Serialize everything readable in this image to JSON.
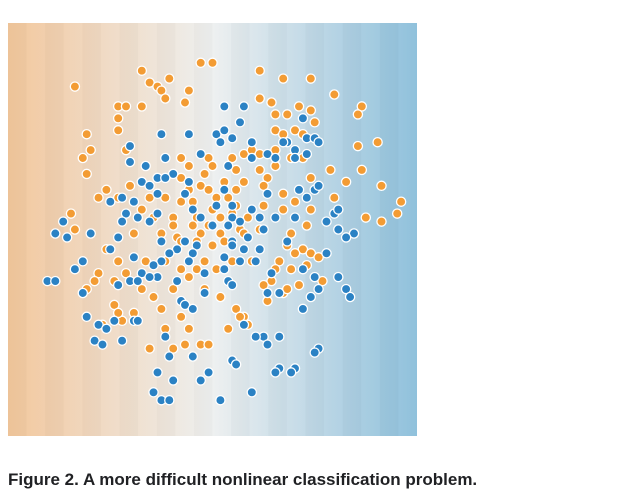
{
  "caption": "Figure 2. A more difficult nonlinear classification problem.",
  "colors": {
    "orange_point": "#f39c34",
    "blue_point": "#2b82c4",
    "background_left": "#f2c79c",
    "background_mid": "#eef0f0",
    "background_right": "#8ec0dc",
    "point_stroke": "#ffffff"
  },
  "chart_data": {
    "type": "scatter",
    "title": "",
    "xlabel": "",
    "ylabel": "",
    "xlim": [
      0,
      100
    ],
    "ylim": [
      0,
      100
    ],
    "grid": false,
    "background": "horizontal gradient orange to blue",
    "series": [
      {
        "color": "#f39c34",
        "points": [
          [
            47,
            92
          ],
          [
            50,
            92
          ],
          [
            32,
            90
          ],
          [
            62,
            90
          ],
          [
            39,
            88
          ],
          [
            68,
            88
          ],
          [
            75,
            88
          ],
          [
            34,
            87
          ],
          [
            36,
            86
          ],
          [
            15,
            86
          ],
          [
            37,
            85
          ],
          [
            44,
            85
          ],
          [
            81,
            84
          ],
          [
            62,
            83
          ],
          [
            38,
            83
          ],
          [
            65,
            82
          ],
          [
            26,
            81
          ],
          [
            28,
            81
          ],
          [
            32,
            81
          ],
          [
            43,
            82
          ],
          [
            88,
            81
          ],
          [
            72,
            81
          ],
          [
            75,
            80
          ],
          [
            69,
            79
          ],
          [
            66,
            79
          ],
          [
            87,
            79
          ],
          [
            26,
            78
          ],
          [
            76,
            77
          ],
          [
            66,
            75
          ],
          [
            18,
            74
          ],
          [
            71,
            75
          ],
          [
            26,
            75
          ],
          [
            68,
            74
          ],
          [
            73,
            74
          ],
          [
            19,
            70
          ],
          [
            87,
            71
          ],
          [
            92,
            72
          ],
          [
            28,
            70
          ],
          [
            58,
            69
          ],
          [
            60,
            70
          ],
          [
            62,
            69
          ],
          [
            66,
            70
          ],
          [
            42,
            68
          ],
          [
            49,
            68
          ],
          [
            55,
            68
          ],
          [
            70,
            68
          ],
          [
            73,
            68
          ],
          [
            17,
            68
          ],
          [
            66,
            66
          ],
          [
            50,
            66
          ],
          [
            62,
            65
          ],
          [
            80,
            65
          ],
          [
            18,
            64
          ],
          [
            44,
            66
          ],
          [
            48,
            64
          ],
          [
            56,
            65
          ],
          [
            88,
            65
          ],
          [
            75,
            63
          ],
          [
            84,
            62
          ],
          [
            42,
            63
          ],
          [
            47,
            61
          ],
          [
            53,
            62
          ],
          [
            58,
            62
          ],
          [
            64,
            63
          ],
          [
            44,
            60
          ],
          [
            49,
            60
          ],
          [
            56,
            60
          ],
          [
            63,
            61
          ],
          [
            23,
            60
          ],
          [
            29,
            61
          ],
          [
            93,
            61
          ],
          [
            21,
            58
          ],
          [
            26,
            58
          ],
          [
            34,
            58
          ],
          [
            38,
            58
          ],
          [
            51,
            58
          ],
          [
            54,
            58
          ],
          [
            56,
            56
          ],
          [
            68,
            59
          ],
          [
            81,
            58
          ],
          [
            98,
            57
          ],
          [
            42,
            57
          ],
          [
            45,
            57
          ],
          [
            63,
            56
          ],
          [
            71,
            57
          ],
          [
            32,
            55
          ],
          [
            50,
            55
          ],
          [
            55,
            54
          ],
          [
            68,
            55
          ],
          [
            97,
            54
          ],
          [
            75,
            55
          ],
          [
            14,
            54
          ],
          [
            35,
            53
          ],
          [
            40,
            53
          ],
          [
            46,
            53
          ],
          [
            52,
            53
          ],
          [
            59,
            53
          ],
          [
            89,
            53
          ],
          [
            93,
            52
          ],
          [
            40,
            51
          ],
          [
            45,
            51
          ],
          [
            49,
            51
          ],
          [
            57,
            50
          ],
          [
            74,
            51
          ],
          [
            62,
            50
          ],
          [
            15,
            50
          ],
          [
            30,
            49
          ],
          [
            37,
            49
          ],
          [
            41,
            48
          ],
          [
            47,
            49
          ],
          [
            52,
            49
          ],
          [
            58,
            49
          ],
          [
            70,
            49
          ],
          [
            42,
            47
          ],
          [
            46,
            47
          ],
          [
            50,
            46
          ],
          [
            53,
            47
          ],
          [
            69,
            46
          ],
          [
            73,
            45
          ],
          [
            75,
            44
          ],
          [
            23,
            45
          ],
          [
            71,
            44
          ],
          [
            77,
            43
          ],
          [
            26,
            42
          ],
          [
            33,
            42
          ],
          [
            38,
            42
          ],
          [
            48,
            42
          ],
          [
            55,
            42
          ],
          [
            60,
            42
          ],
          [
            67,
            42
          ],
          [
            42,
            40
          ],
          [
            46,
            40
          ],
          [
            51,
            40
          ],
          [
            66,
            40
          ],
          [
            70,
            40
          ],
          [
            74,
            41
          ],
          [
            21,
            39
          ],
          [
            28,
            39
          ],
          [
            44,
            38
          ],
          [
            65,
            37
          ],
          [
            78,
            37
          ],
          [
            72,
            36
          ],
          [
            20,
            37
          ],
          [
            25,
            37
          ],
          [
            32,
            35
          ],
          [
            40,
            35
          ],
          [
            48,
            35
          ],
          [
            35,
            33
          ],
          [
            52,
            33
          ],
          [
            64,
            32
          ],
          [
            25,
            31
          ],
          [
            37,
            30
          ],
          [
            56,
            30
          ],
          [
            58,
            28
          ],
          [
            68,
            34
          ],
          [
            69,
            35
          ],
          [
            63,
            36
          ],
          [
            30,
            29
          ],
          [
            42,
            28
          ],
          [
            57,
            28
          ],
          [
            59,
            26
          ],
          [
            27,
            27
          ],
          [
            38,
            25
          ],
          [
            44,
            25
          ],
          [
            54,
            25
          ],
          [
            47,
            21
          ],
          [
            43,
            21
          ],
          [
            49,
            21
          ],
          [
            34,
            20
          ],
          [
            40,
            20
          ],
          [
            22,
            26
          ],
          [
            26,
            29
          ],
          [
            18,
            35
          ]
        ]
      },
      {
        "color": "#2b82c4",
        "points": [
          [
            53,
            81
          ],
          [
            58,
            81
          ],
          [
            57,
            77
          ],
          [
            73,
            78
          ],
          [
            74,
            73
          ],
          [
            76,
            73
          ],
          [
            44,
            74
          ],
          [
            37,
            74
          ],
          [
            51,
            74
          ],
          [
            53,
            75
          ],
          [
            55,
            73
          ],
          [
            69,
            72
          ],
          [
            29,
            71
          ],
          [
            52,
            72
          ],
          [
            60,
            72
          ],
          [
            68,
            72
          ],
          [
            77,
            72
          ],
          [
            71,
            70
          ],
          [
            74,
            69
          ],
          [
            60,
            68
          ],
          [
            64,
            69
          ],
          [
            71,
            68
          ],
          [
            38,
            68
          ],
          [
            29,
            67
          ],
          [
            33,
            66
          ],
          [
            47,
            69
          ],
          [
            66,
            68
          ],
          [
            54,
            66
          ],
          [
            40,
            64
          ],
          [
            36,
            63
          ],
          [
            38,
            63
          ],
          [
            32,
            62
          ],
          [
            34,
            61
          ],
          [
            44,
            62
          ],
          [
            76,
            60
          ],
          [
            77,
            61
          ],
          [
            64,
            59
          ],
          [
            53,
            60
          ],
          [
            72,
            60
          ],
          [
            36,
            59
          ],
          [
            27,
            58
          ],
          [
            43,
            59
          ],
          [
            74,
            58
          ],
          [
            30,
            57
          ],
          [
            24,
            57
          ],
          [
            28,
            54
          ],
          [
            31,
            53
          ],
          [
            60,
            55
          ],
          [
            81,
            54
          ],
          [
            51,
            56
          ],
          [
            55,
            56
          ],
          [
            45,
            55
          ],
          [
            36,
            54
          ],
          [
            47,
            53
          ],
          [
            55,
            53
          ],
          [
            57,
            52
          ],
          [
            71,
            53
          ],
          [
            62,
            53
          ],
          [
            82,
            55
          ],
          [
            66,
            53
          ],
          [
            82,
            50
          ],
          [
            12,
            52
          ],
          [
            79,
            52
          ],
          [
            34,
            52
          ],
          [
            27,
            52
          ],
          [
            50,
            51
          ],
          [
            54,
            51
          ],
          [
            63,
            50
          ],
          [
            86,
            49
          ],
          [
            10,
            49
          ],
          [
            84,
            48
          ],
          [
            59,
            48
          ],
          [
            19,
            49
          ],
          [
            37,
            47
          ],
          [
            26,
            48
          ],
          [
            43,
            47
          ],
          [
            46,
            46
          ],
          [
            55,
            47
          ],
          [
            69,
            47
          ],
          [
            13,
            48
          ],
          [
            41,
            45
          ],
          [
            55,
            46
          ],
          [
            24,
            45
          ],
          [
            58,
            45
          ],
          [
            62,
            45
          ],
          [
            39,
            44
          ],
          [
            79,
            44
          ],
          [
            30,
            43
          ],
          [
            37,
            42
          ],
          [
            53,
            43
          ],
          [
            17,
            42
          ],
          [
            61,
            42
          ],
          [
            45,
            44
          ],
          [
            35,
            41
          ],
          [
            44,
            42
          ],
          [
            53,
            40
          ],
          [
            57,
            42
          ],
          [
            15,
            40
          ],
          [
            32,
            39
          ],
          [
            36,
            38
          ],
          [
            54,
            37
          ],
          [
            29,
            37
          ],
          [
            31,
            37
          ],
          [
            48,
            39
          ],
          [
            65,
            39
          ],
          [
            73,
            40
          ],
          [
            76,
            38
          ],
          [
            82,
            38
          ],
          [
            8,
            37
          ],
          [
            10,
            37
          ],
          [
            41,
            37
          ],
          [
            55,
            36
          ],
          [
            26,
            36
          ],
          [
            34,
            38
          ],
          [
            77,
            35
          ],
          [
            84,
            35
          ],
          [
            85,
            33
          ],
          [
            42,
            32
          ],
          [
            48,
            34
          ],
          [
            64,
            34
          ],
          [
            67,
            34
          ],
          [
            43,
            31
          ],
          [
            75,
            33
          ],
          [
            17,
            34
          ],
          [
            73,
            30
          ],
          [
            18,
            28
          ],
          [
            25,
            27
          ],
          [
            30,
            27
          ],
          [
            31,
            27
          ],
          [
            45,
            30
          ],
          [
            21,
            26
          ],
          [
            23,
            25
          ],
          [
            58,
            26
          ],
          [
            63,
            23
          ],
          [
            67,
            23
          ],
          [
            61,
            23
          ],
          [
            64,
            21
          ],
          [
            20,
            22
          ],
          [
            22,
            21
          ],
          [
            27,
            22
          ],
          [
            38,
            23
          ],
          [
            77,
            20
          ],
          [
            39,
            18
          ],
          [
            45,
            18
          ],
          [
            76,
            19
          ],
          [
            55,
            17
          ],
          [
            56,
            16
          ],
          [
            67,
            15
          ],
          [
            71,
            15
          ],
          [
            70,
            14
          ],
          [
            49,
            14
          ],
          [
            66,
            14
          ],
          [
            36,
            14
          ],
          [
            40,
            12
          ],
          [
            47,
            12
          ],
          [
            35,
            9
          ],
          [
            60,
            9
          ],
          [
            37,
            7
          ],
          [
            39,
            7
          ],
          [
            52,
            7
          ]
        ]
      }
    ]
  }
}
